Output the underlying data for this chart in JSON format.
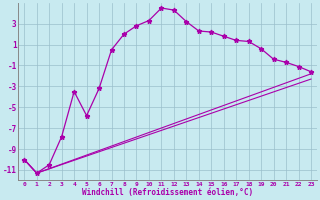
{
  "xlabel": "Windchill (Refroidissement éolien,°C)",
  "background_color": "#c8eaf0",
  "line_color": "#aa00aa",
  "grid_color": "#9bbfcc",
  "xlim": [
    -0.5,
    23.5
  ],
  "ylim": [
    -12,
    5
  ],
  "yticks": [
    3,
    1,
    -1,
    -3,
    -5,
    -7,
    -9,
    -11
  ],
  "xticks": [
    0,
    1,
    2,
    3,
    4,
    5,
    6,
    7,
    8,
    9,
    10,
    11,
    12,
    13,
    14,
    15,
    16,
    17,
    18,
    19,
    20,
    21,
    22,
    23
  ],
  "series1_x": [
    0,
    1,
    2,
    3,
    4,
    5,
    6,
    7,
    8,
    9,
    10,
    11,
    12,
    13,
    14,
    15,
    16,
    17,
    18,
    19,
    20,
    21,
    22,
    23
  ],
  "series1_y": [
    -10.0,
    -11.3,
    -10.5,
    -7.8,
    -3.5,
    -5.8,
    -3.2,
    0.5,
    2.0,
    2.8,
    3.3,
    4.5,
    4.3,
    3.2,
    2.3,
    2.2,
    1.8,
    1.4,
    1.3,
    0.6,
    -0.4,
    -0.7,
    -1.1,
    -1.6
  ],
  "series2_x": [
    0,
    1,
    23
  ],
  "series2_y": [
    -10.0,
    -11.3,
    -1.8
  ],
  "series3_x": [
    0,
    1,
    23
  ],
  "series3_y": [
    -10.0,
    -11.3,
    -2.3
  ]
}
